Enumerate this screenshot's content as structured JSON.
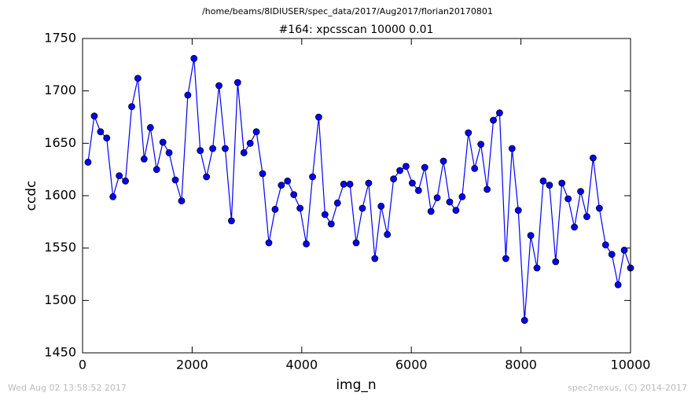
{
  "chart_data": {
    "type": "line",
    "suptitle": "/home/beams/8IDIUSER/spec_data/2017/Aug2017/florian20170801",
    "title": "#164: xpcsscan 10000 0.01",
    "x_label": "img_n",
    "y_label": "ccdc",
    "footer_left": "Wed Aug 02 13:58:52 2017",
    "footer_right": "spec2nexus, (C) 2014-2017",
    "x": [
      100,
      214,
      328,
      441,
      555,
      669,
      783,
      897,
      1010,
      1124,
      1238,
      1352,
      1466,
      1579,
      1693,
      1807,
      1921,
      2034,
      2148,
      2262,
      2376,
      2490,
      2603,
      2717,
      2831,
      2945,
      3059,
      3172,
      3286,
      3400,
      3514,
      3628,
      3741,
      3855,
      3969,
      4083,
      4197,
      4310,
      4424,
      4538,
      4652,
      4766,
      4879,
      4993,
      5107,
      5221,
      5334,
      5448,
      5562,
      5676,
      5790,
      5903,
      6017,
      6131,
      6245,
      6359,
      6472,
      6586,
      6700,
      6814,
      6928,
      7041,
      7155,
      7269,
      7383,
      7497,
      7610,
      7724,
      7838,
      7952,
      8066,
      8179,
      8293,
      8407,
      8521,
      8634,
      8748,
      8862,
      8976,
      9090,
      9203,
      9317,
      9431,
      9545,
      9659,
      9772,
      9886,
      10000
    ],
    "series": [
      {
        "name": "ccdc",
        "color": "#0000ff",
        "marker_edge": "#000000",
        "values": [
          1632,
          1676,
          1661,
          1655,
          1599,
          1619,
          1614,
          1685,
          1712,
          1635,
          1665,
          1625,
          1651,
          1641,
          1615,
          1595,
          1696,
          1731,
          1643,
          1618,
          1645,
          1705,
          1645,
          1576,
          1708,
          1641,
          1650,
          1661,
          1621,
          1555,
          1587,
          1610,
          1614,
          1601,
          1588,
          1554,
          1618,
          1675,
          1582,
          1573,
          1593,
          1611,
          1611,
          1555,
          1588,
          1612,
          1540,
          1590,
          1563,
          1616,
          1624,
          1628,
          1612,
          1605,
          1627,
          1585,
          1598,
          1633,
          1594,
          1586,
          1599,
          1660,
          1626,
          1649,
          1606,
          1672,
          1679,
          1540,
          1645,
          1586,
          1481,
          1562,
          1531,
          1614,
          1610,
          1537,
          1612,
          1597,
          1570,
          1604,
          1580,
          1636,
          1588,
          1553,
          1544,
          1515,
          1548,
          1531
        ]
      }
    ],
    "xlim": [
      0,
      10000
    ],
    "xticks": [
      0,
      2000,
      4000,
      6000,
      8000,
      10000
    ],
    "ylim": [
      1450,
      1750
    ],
    "yticks": [
      1450,
      1500,
      1550,
      1600,
      1650,
      1700,
      1750
    ],
    "grid": false
  }
}
